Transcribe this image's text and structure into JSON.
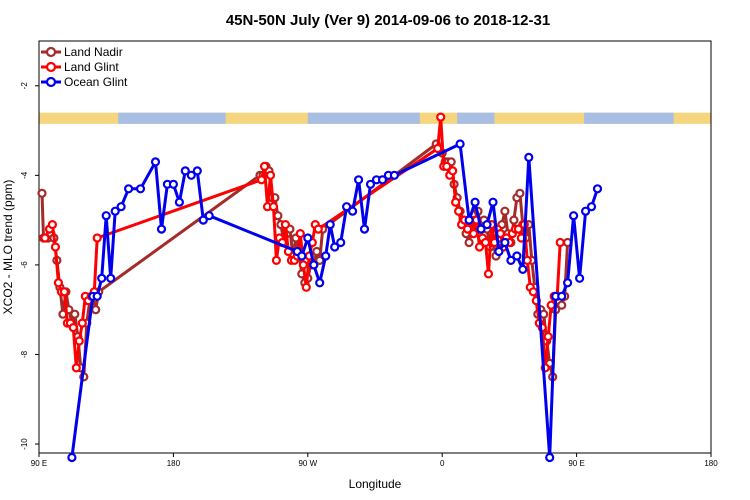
{
  "chart_data": {
    "type": "line",
    "title": "45N-50N July (Ver 9)   2014-09-06 to 2018-12-31",
    "xlabel": "Longitude",
    "ylabel": "XCO2 - MLO trend (ppm)",
    "xlim": [
      90,
      450
    ],
    "ylim": [
      -10.2,
      -1.0
    ],
    "x_ticks": [
      {
        "value": 90,
        "label": "90 E"
      },
      {
        "value": 180,
        "label": "180"
      },
      {
        "value": 270,
        "label": "90 W"
      },
      {
        "value": 360,
        "label": "0"
      },
      {
        "value": 450,
        "label": "90 E"
      },
      {
        "value": 540,
        "label": "180"
      }
    ],
    "y_ticks": [
      {
        "value": -2,
        "label": "-2"
      },
      {
        "value": -4,
        "label": "-4"
      },
      {
        "value": -6,
        "label": "-6"
      },
      {
        "value": -8,
        "label": "-8"
      },
      {
        "value": -10,
        "label": "-10"
      }
    ],
    "x_range_label": [
      90,
      540
    ],
    "grid": false,
    "legend_position": "top-left",
    "land_ocean_strip": {
      "y_top": -2.6,
      "y_bottom": -2.85,
      "land_color": "#f6d57f",
      "ocean_color": "#a8bfe3"
    },
    "series": [
      {
        "name": "Land Nadir",
        "color": "#a52a2a",
        "points": [
          [
            92,
            -4.4
          ],
          [
            93,
            -5.4
          ],
          [
            96,
            -5.4
          ],
          [
            98,
            -5.3
          ],
          [
            100,
            -5.4
          ],
          [
            102,
            -5.9
          ],
          [
            104,
            -6.5
          ],
          [
            106,
            -7.1
          ],
          [
            108,
            -6.6
          ],
          [
            110,
            -7.0
          ],
          [
            112,
            -7.3
          ],
          [
            114,
            -7.1
          ],
          [
            116,
            -7.6
          ],
          [
            118,
            -8.3
          ],
          [
            120,
            -8.5
          ],
          [
            122,
            -7.3
          ],
          [
            124,
            -6.8
          ],
          [
            126,
            -6.7
          ],
          [
            128,
            -7.0
          ],
          [
            130,
            -6.6
          ],
          [
            238,
            -4.0
          ],
          [
            240,
            -4.0
          ],
          [
            242,
            -3.8
          ],
          [
            244,
            -3.9
          ],
          [
            246,
            -4.5
          ],
          [
            248,
            -4.5
          ],
          [
            250,
            -4.9
          ],
          [
            252,
            -5.1
          ],
          [
            254,
            -5.5
          ],
          [
            256,
            -5.3
          ],
          [
            258,
            -5.2
          ],
          [
            260,
            -5.8
          ],
          [
            262,
            -5.4
          ],
          [
            264,
            -5.7
          ],
          [
            266,
            -6.2
          ],
          [
            268,
            -6.4
          ],
          [
            270,
            -6.3
          ],
          [
            272,
            -6.0
          ],
          [
            274,
            -6.0
          ],
          [
            276,
            -5.7
          ],
          [
            278,
            -5.9
          ],
          [
            280,
            -5.2
          ],
          [
            356,
            -3.3
          ],
          [
            358,
            -3.4
          ],
          [
            360,
            -3.5
          ],
          [
            362,
            -3.7
          ],
          [
            364,
            -3.7
          ],
          [
            366,
            -3.7
          ],
          [
            368,
            -4.2
          ],
          [
            370,
            -4.5
          ],
          [
            372,
            -4.8
          ],
          [
            374,
            -5.0
          ],
          [
            376,
            -5.3
          ],
          [
            378,
            -5.5
          ],
          [
            380,
            -5.2
          ],
          [
            382,
            -5.0
          ],
          [
            384,
            -4.8
          ],
          [
            386,
            -5.2
          ],
          [
            388,
            -5.0
          ],
          [
            390,
            -5.2
          ],
          [
            392,
            -5.6
          ],
          [
            394,
            -5.5
          ],
          [
            396,
            -5.8
          ],
          [
            398,
            -5.4
          ],
          [
            400,
            -5.1
          ],
          [
            402,
            -4.8
          ],
          [
            404,
            -5.3
          ],
          [
            406,
            -5.5
          ],
          [
            408,
            -5.0
          ],
          [
            410,
            -4.5
          ],
          [
            412,
            -4.4
          ],
          [
            414,
            -5.1
          ],
          [
            416,
            -5.4
          ],
          [
            418,
            -5.1
          ],
          [
            420,
            -5.9
          ],
          [
            422,
            -6.5
          ],
          [
            424,
            -7.1
          ],
          [
            426,
            -7.0
          ],
          [
            428,
            -7.1
          ],
          [
            430,
            -7.7
          ],
          [
            432,
            -8.2
          ],
          [
            434,
            -8.5
          ],
          [
            436,
            -7.0
          ],
          [
            438,
            -6.8
          ],
          [
            440,
            -6.9
          ],
          [
            442,
            -6.7
          ],
          [
            444,
            -5.5
          ]
        ]
      },
      {
        "name": "Land Glint",
        "color": "#ff0000",
        "points": [
          [
            94,
            -5.4
          ],
          [
            97,
            -5.2
          ],
          [
            99,
            -5.1
          ],
          [
            101,
            -5.6
          ],
          [
            103,
            -6.4
          ],
          [
            105,
            -6.6
          ],
          [
            107,
            -6.6
          ],
          [
            109,
            -7.3
          ],
          [
            111,
            -7.3
          ],
          [
            113,
            -7.4
          ],
          [
            115,
            -8.3
          ],
          [
            117,
            -7.7
          ],
          [
            119,
            -7.3
          ],
          [
            121,
            -6.7
          ],
          [
            123,
            -6.8
          ],
          [
            125,
            -6.7
          ],
          [
            127,
            -6.6
          ],
          [
            129,
            -5.4
          ],
          [
            239,
            -4.1
          ],
          [
            241,
            -3.8
          ],
          [
            243,
            -4.7
          ],
          [
            245,
            -4.0
          ],
          [
            247,
            -4.7
          ],
          [
            249,
            -5.9
          ],
          [
            251,
            -5.4
          ],
          [
            253,
            -5.5
          ],
          [
            255,
            -5.1
          ],
          [
            257,
            -5.7
          ],
          [
            259,
            -5.9
          ],
          [
            261,
            -5.9
          ],
          [
            263,
            -5.8
          ],
          [
            265,
            -5.3
          ],
          [
            267,
            -6.0
          ],
          [
            269,
            -6.5
          ],
          [
            271,
            -5.8
          ],
          [
            273,
            -5.5
          ],
          [
            275,
            -5.1
          ],
          [
            277,
            -5.2
          ],
          [
            357,
            -3.4
          ],
          [
            359,
            -2.7
          ],
          [
            361,
            -3.8
          ],
          [
            363,
            -3.8
          ],
          [
            365,
            -4.0
          ],
          [
            367,
            -3.9
          ],
          [
            369,
            -4.6
          ],
          [
            371,
            -4.8
          ],
          [
            373,
            -5.1
          ],
          [
            375,
            -5.0
          ],
          [
            377,
            -5.2
          ],
          [
            379,
            -5.0
          ],
          [
            381,
            -5.3
          ],
          [
            383,
            -5.0
          ],
          [
            385,
            -5.6
          ],
          [
            387,
            -5.4
          ],
          [
            389,
            -5.5
          ],
          [
            391,
            -6.2
          ],
          [
            393,
            -5.1
          ],
          [
            395,
            -5.5
          ],
          [
            397,
            -5.2
          ],
          [
            399,
            -5.3
          ],
          [
            401,
            -5.6
          ],
          [
            403,
            -5.4
          ],
          [
            405,
            -5.5
          ],
          [
            407,
            -5.3
          ],
          [
            409,
            -5.2
          ],
          [
            411,
            -5.2
          ],
          [
            413,
            -5.4
          ],
          [
            415,
            -5.1
          ],
          [
            417,
            -5.9
          ],
          [
            419,
            -6.5
          ],
          [
            421,
            -6.6
          ],
          [
            423,
            -6.8
          ],
          [
            425,
            -7.3
          ],
          [
            427,
            -7.4
          ],
          [
            429,
            -8.3
          ],
          [
            431,
            -7.6
          ],
          [
            433,
            -6.9
          ],
          [
            435,
            -6.7
          ],
          [
            437,
            -6.7
          ],
          [
            439,
            -5.5
          ]
        ]
      },
      {
        "name": "Ocean Glint",
        "color": "#0000ee",
        "points": [
          [
            112,
            -10.3
          ],
          [
            126,
            -6.7
          ],
          [
            129,
            -6.7
          ],
          [
            132,
            -6.3
          ],
          [
            135,
            -4.9
          ],
          [
            138,
            -6.3
          ],
          [
            141,
            -4.8
          ],
          [
            145,
            -4.7
          ],
          [
            150,
            -4.3
          ],
          [
            158,
            -4.3
          ],
          [
            168,
            -3.7
          ],
          [
            172,
            -5.2
          ],
          [
            176,
            -4.2
          ],
          [
            180,
            -4.2
          ],
          [
            184,
            -4.6
          ],
          [
            188,
            -3.9
          ],
          [
            192,
            -4.0
          ],
          [
            196,
            -3.9
          ],
          [
            200,
            -5.0
          ],
          [
            204,
            -4.9
          ],
          [
            263,
            -5.7
          ],
          [
            266,
            -5.8
          ],
          [
            270,
            -5.4
          ],
          [
            274,
            -6.0
          ],
          [
            278,
            -6.4
          ],
          [
            282,
            -5.8
          ],
          [
            285,
            -5.1
          ],
          [
            288,
            -5.6
          ],
          [
            292,
            -5.5
          ],
          [
            296,
            -4.7
          ],
          [
            300,
            -4.8
          ],
          [
            304,
            -4.1
          ],
          [
            308,
            -5.2
          ],
          [
            312,
            -4.2
          ],
          [
            316,
            -4.1
          ],
          [
            320,
            -4.1
          ],
          [
            324,
            -4.0
          ],
          [
            328,
            -4.0
          ],
          [
            372,
            -3.3
          ],
          [
            378,
            -5.0
          ],
          [
            382,
            -4.6
          ],
          [
            386,
            -5.2
          ],
          [
            390,
            -5.1
          ],
          [
            394,
            -4.6
          ],
          [
            398,
            -5.7
          ],
          [
            402,
            -5.5
          ],
          [
            406,
            -5.9
          ],
          [
            410,
            -5.8
          ],
          [
            414,
            -6.1
          ],
          [
            418,
            -3.6
          ],
          [
            432,
            -10.3
          ],
          [
            436,
            -6.7
          ],
          [
            440,
            -6.7
          ],
          [
            444,
            -6.4
          ],
          [
            448,
            -4.9
          ],
          [
            452,
            -6.3
          ],
          [
            456,
            -4.8
          ],
          [
            460,
            -4.7
          ],
          [
            464,
            -4.3
          ]
        ]
      }
    ]
  }
}
